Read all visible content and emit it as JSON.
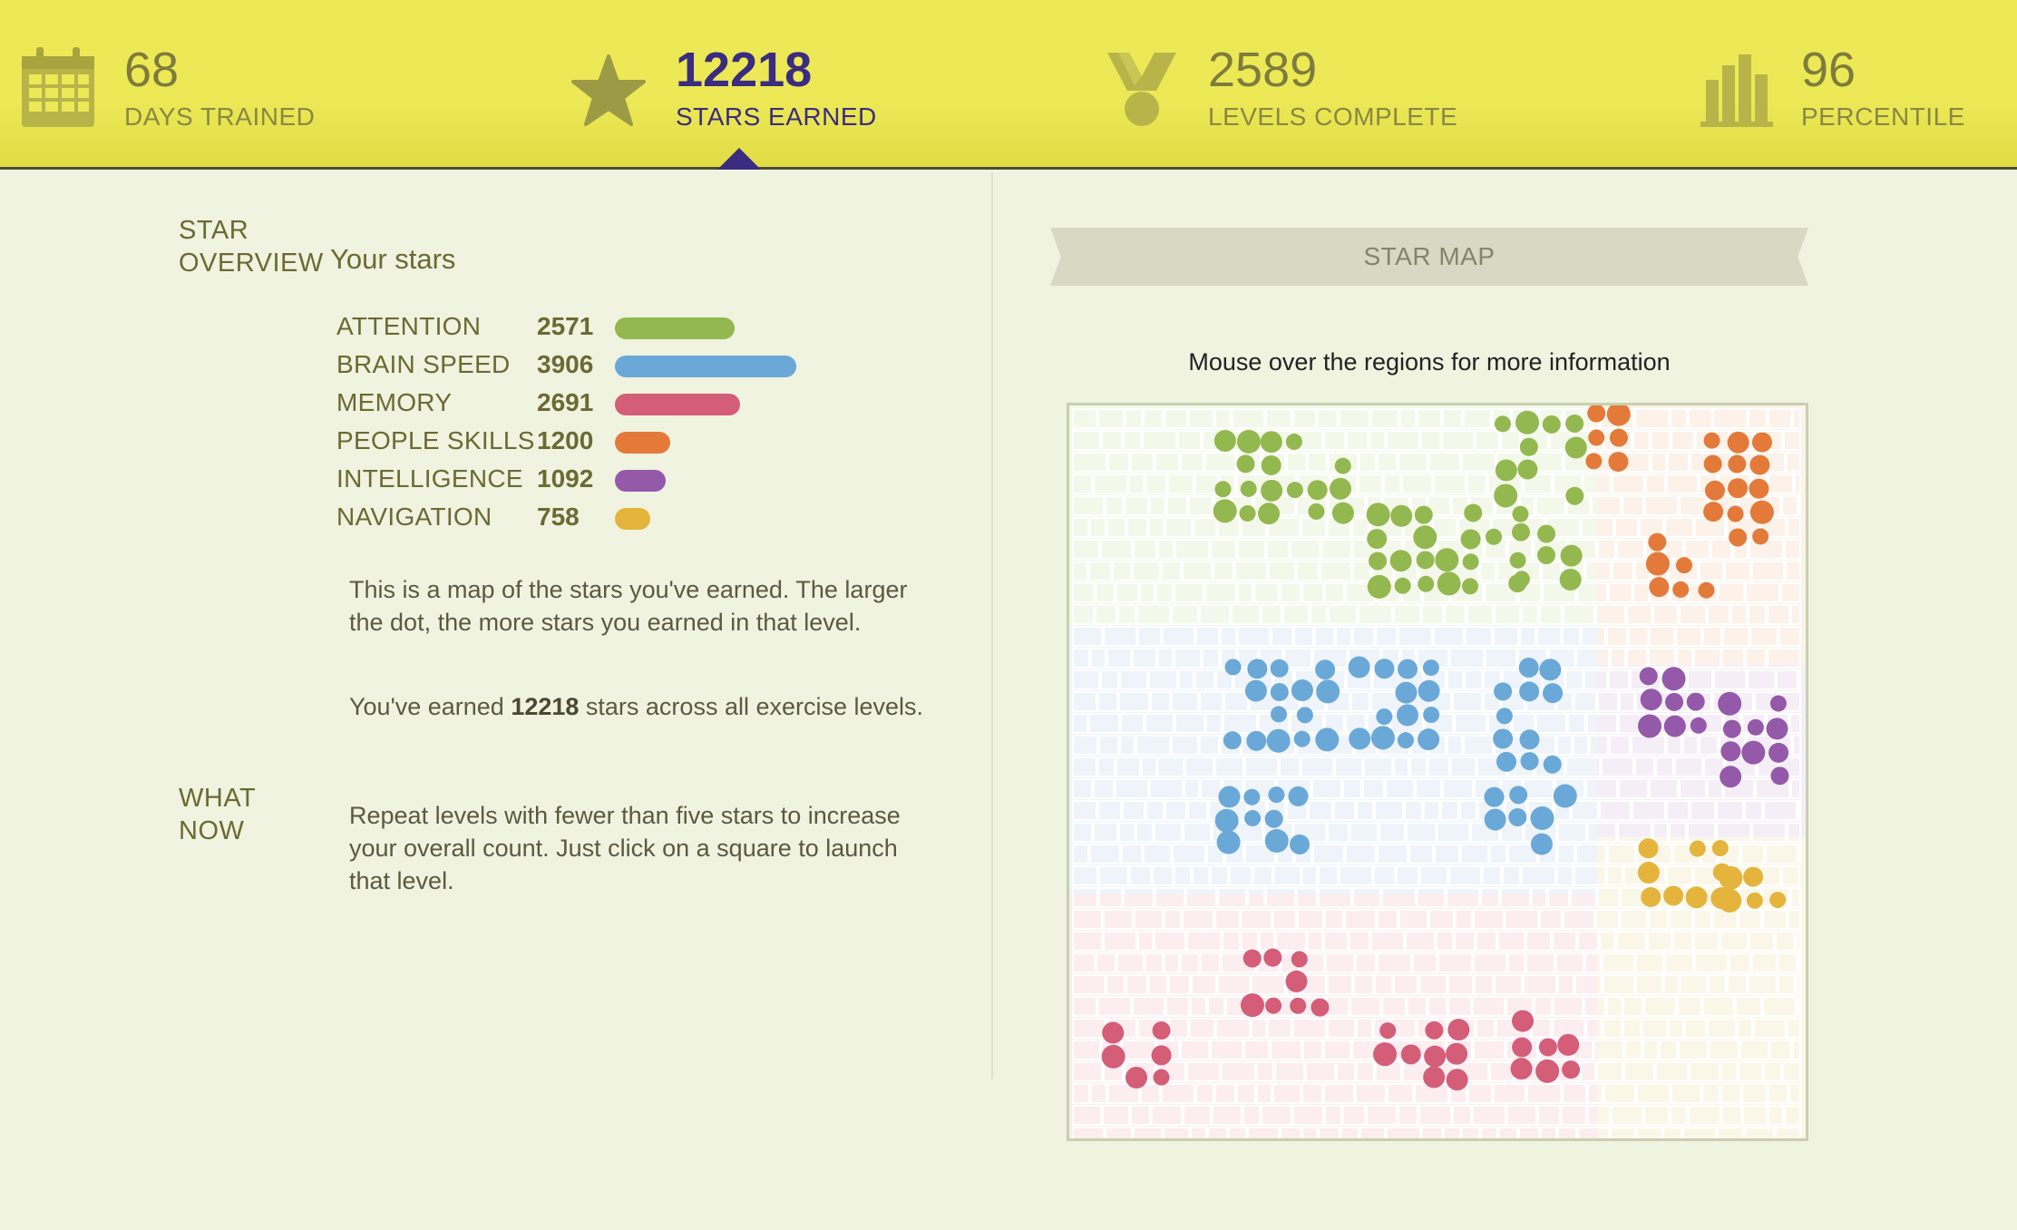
{
  "header": {
    "stats": [
      {
        "number": "68",
        "label": "DAYS TRAINED",
        "icon": "calendar-icon"
      },
      {
        "number": "12218",
        "label": "STARS EARNED",
        "icon": "star-icon",
        "active": true
      },
      {
        "number": "2589",
        "label": "LEVELS COMPLETE",
        "icon": "medal-icon"
      },
      {
        "number": "96",
        "label": "PERCENTILE",
        "icon": "bar-chart-icon"
      }
    ]
  },
  "overview": {
    "title": "STAR\nOVERVIEW",
    "subtitle": "Your stars",
    "categories": [
      {
        "name": "ATTENTION",
        "value": "2571",
        "stars": 2571,
        "color": "#93b84f"
      },
      {
        "name": "BRAIN SPEED",
        "value": "3906",
        "stars": 3906,
        "color": "#6aa8d8"
      },
      {
        "name": "MEMORY",
        "value": "2691",
        "stars": 2691,
        "color": "#d45d78"
      },
      {
        "name": "PEOPLE SKILLS",
        "value": "1200",
        "stars": 1200,
        "color": "#e37a3a"
      },
      {
        "name": "INTELLIGENCE",
        "value": "1092",
        "stars": 1092,
        "color": "#9459a8"
      },
      {
        "name": "NAVIGATION",
        "value": "758",
        "stars": 758,
        "color": "#e4b43c"
      }
    ],
    "description": "This is a map of the stars you've earned. The larger the dot, the more stars you earned in that level.",
    "earned_prefix": "You've earned ",
    "earned_value": "12218",
    "earned_suffix": " stars across all exercise levels."
  },
  "what_now": {
    "title": "WHAT\nNOW",
    "text": "Repeat levels with fewer than five stars to increase your overall count. Just click on a square to launch that level."
  },
  "star_map": {
    "title": "STAR MAP",
    "hint": "Mouse over the regions for more information"
  }
}
